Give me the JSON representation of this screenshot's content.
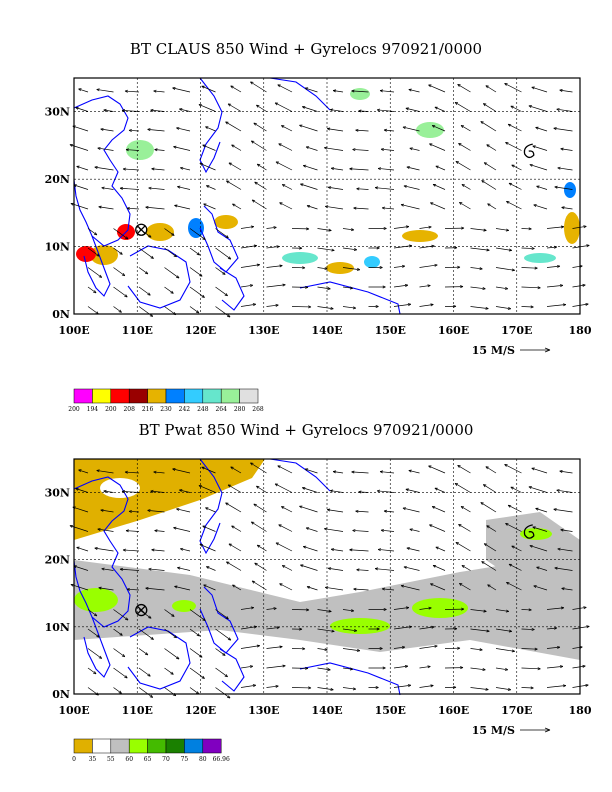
{
  "panels": [
    {
      "title": "BT CLAUS 850 Wind + Gyrelocs 970921/0000",
      "lat_labels": [
        "30N",
        "20N",
        "10N",
        "0N"
      ],
      "lon_labels": [
        "100E",
        "110E",
        "120E",
        "130E",
        "140E",
        "150E",
        "160E",
        "170E",
        "180"
      ],
      "ref_vector_label": "15 M/S",
      "legend": {
        "colors": [
          "#ff00ff",
          "#ffff00",
          "#ff0000",
          "#990000",
          "#e6b300",
          "#0080ff",
          "#33ccff",
          "#66e6cc",
          "#99f099",
          "#e0e0e0"
        ],
        "labels": [
          "200",
          "194",
          "200",
          "208",
          "216",
          "230",
          "242",
          "248",
          "264",
          "280",
          "268"
        ]
      }
    },
    {
      "title": "BT Pwat 850 Wind + Gyrelocs 970921/0000",
      "lat_labels": [
        "30N",
        "20N",
        "10N",
        "0N"
      ],
      "lon_labels": [
        "100E",
        "110E",
        "120E",
        "130E",
        "140E",
        "150E",
        "160E",
        "170E",
        "180"
      ],
      "ref_vector_label": "15 M/S",
      "legend": {
        "colors": [
          "#e0b000",
          "#ffffff",
          "#c0c0c0",
          "#99ff00",
          "#44bb00",
          "#1a8000",
          "#0080e0",
          "#8000c0"
        ],
        "labels": [
          "0",
          "35",
          "55",
          "60",
          "65",
          "70",
          "75",
          "80",
          "66.96"
        ]
      }
    }
  ],
  "colors": {
    "coast": "#0000ff",
    "frame": "#000000"
  }
}
